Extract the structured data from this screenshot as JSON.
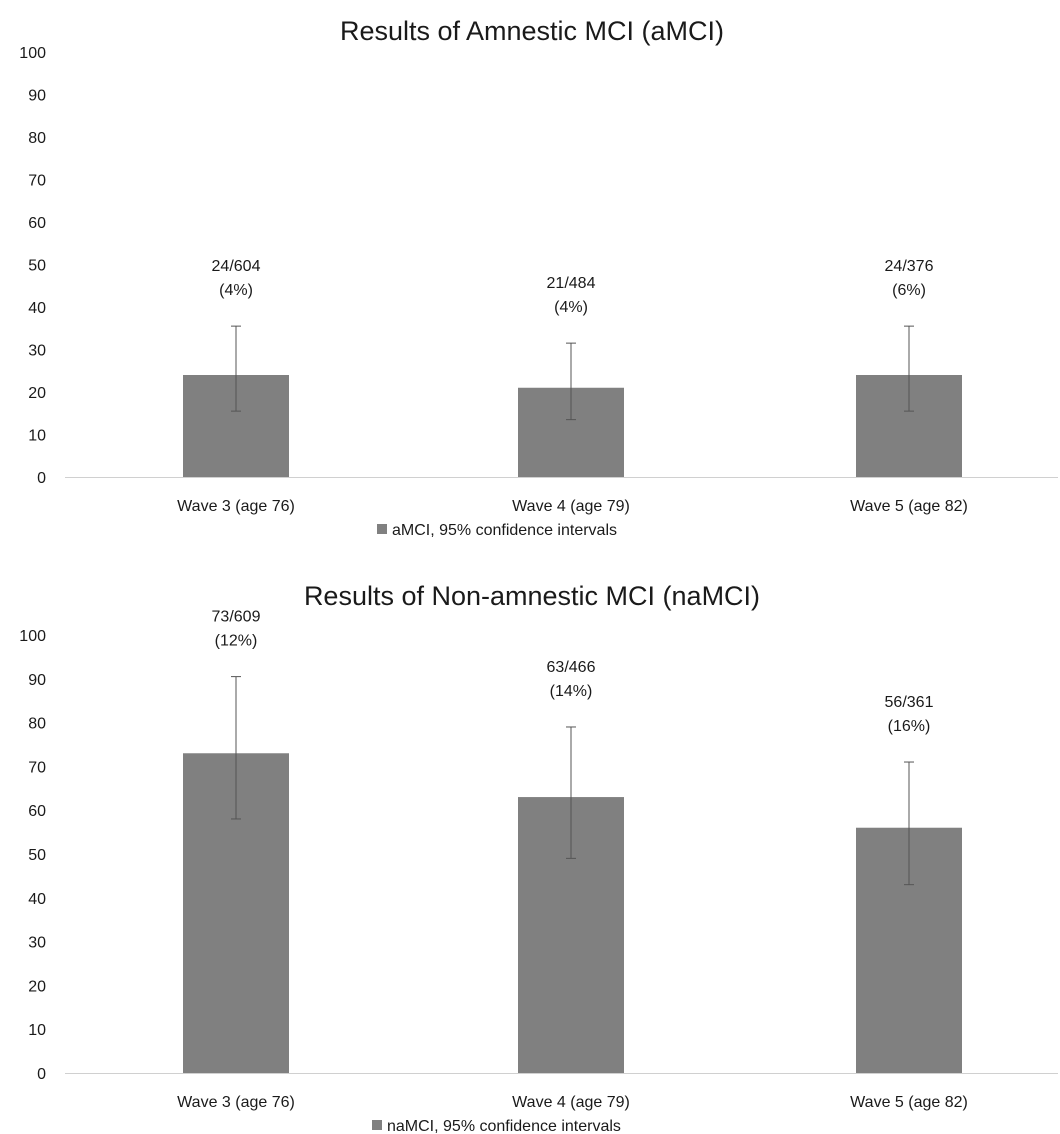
{
  "chart_data": [
    {
      "type": "bar",
      "title": "Results of Amnestic MCI (aMCI)",
      "categories": [
        "Wave 3 (age 76)",
        "Wave 4 (age 79)",
        "Wave 5 (age 82)"
      ],
      "series": [
        {
          "name": "aMCI, 95% confidence intervals",
          "values": [
            24,
            21,
            24
          ],
          "error_low": [
            15.5,
            13.5,
            15.5
          ],
          "error_high": [
            35.5,
            31.5,
            35.5
          ],
          "labels": [
            [
              "24/604",
              "(4%)"
            ],
            [
              "21/484",
              "(4%)"
            ],
            [
              "24/376",
              "(6%)"
            ]
          ]
        }
      ],
      "ylim": [
        0,
        100
      ],
      "yticks": [
        0,
        10,
        20,
        30,
        40,
        50,
        60,
        70,
        80,
        90,
        100
      ],
      "grid": false,
      "legend_position": "bottom",
      "bar_color": "#808080"
    },
    {
      "type": "bar",
      "title": "Results of Non-amnestic MCI (naMCI)",
      "categories": [
        "Wave 3 (age 76)",
        "Wave 4 (age 79)",
        "Wave 5 (age 82)"
      ],
      "series": [
        {
          "name": "naMCI, 95% confidence intervals",
          "values": [
            73,
            63,
            56
          ],
          "error_low": [
            58,
            49,
            43
          ],
          "error_high": [
            90.5,
            79,
            71
          ],
          "labels": [
            [
              "73/609",
              "(12%)"
            ],
            [
              "63/466",
              "(14%)"
            ],
            [
              "56/361",
              "(16%)"
            ]
          ]
        }
      ],
      "ylim": [
        0,
        100
      ],
      "yticks": [
        0,
        10,
        20,
        30,
        40,
        50,
        60,
        70,
        80,
        90,
        100
      ],
      "grid": false,
      "legend_position": "bottom",
      "bar_color": "#808080"
    }
  ]
}
